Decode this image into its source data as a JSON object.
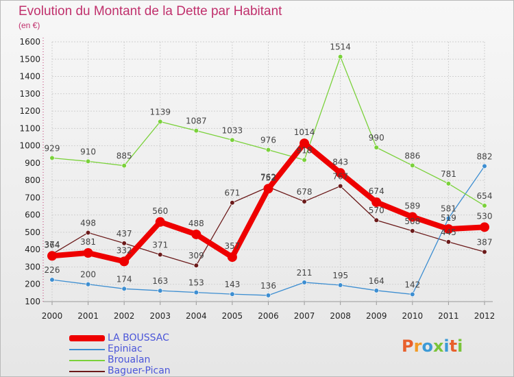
{
  "title": "Evolution du Montant de la Dette par Habitant",
  "unit_note": "(en €)",
  "logo_text": "Proxiti",
  "chart_data": {
    "type": "line",
    "title": "Evolution du Montant de la Dette par Habitant",
    "subtitle": "(en €)",
    "xlabel": "",
    "ylabel": "",
    "x": [
      2000,
      2001,
      2002,
      2003,
      2004,
      2005,
      2006,
      2007,
      2008,
      2009,
      2010,
      2011,
      2012
    ],
    "x_tick_labels": [
      "2000",
      "2001",
      "2002",
      "2003",
      "2004",
      "2005",
      "2006",
      "2007",
      "2008",
      "2009",
      "2010",
      "2011",
      "2012"
    ],
    "y_ticks": [
      100,
      200,
      300,
      400,
      500,
      600,
      700,
      800,
      900,
      1000,
      1100,
      1200,
      1300,
      1400,
      1500,
      1600
    ],
    "ylim": [
      100,
      1600
    ],
    "grid": true,
    "legend_position": "bottom-left",
    "series": [
      {
        "name": "Baguer-Pican",
        "color": "#6b1a1a",
        "emphasis": false,
        "values": [
          374,
          498,
          437,
          371,
          309,
          671,
          762,
          678,
          767,
          570,
          508,
          445,
          387
        ]
      },
      {
        "name": "Epiniac",
        "color": "#3d8ed1",
        "emphasis": false,
        "values": [
          226,
          200,
          174,
          163,
          153,
          143,
          136,
          211,
          195,
          164,
          142,
          581,
          882
        ]
      },
      {
        "name": "Broualan",
        "color": "#7ad13a",
        "emphasis": false,
        "values": [
          929,
          910,
          885,
          1139,
          1087,
          1033,
          976,
          918,
          1514,
          990,
          886,
          781,
          654
        ]
      },
      {
        "name": "LA BOUSSAC",
        "color": "#ee0000",
        "emphasis": true,
        "values": [
          364,
          381,
          332,
          560,
          488,
          357,
          752,
          1014,
          843,
          674,
          589,
          519,
          530
        ]
      }
    ],
    "legend_order": [
      "LA BOUSSAC",
      "Epiniac",
      "Broualan",
      "Baguer-Pican"
    ]
  }
}
